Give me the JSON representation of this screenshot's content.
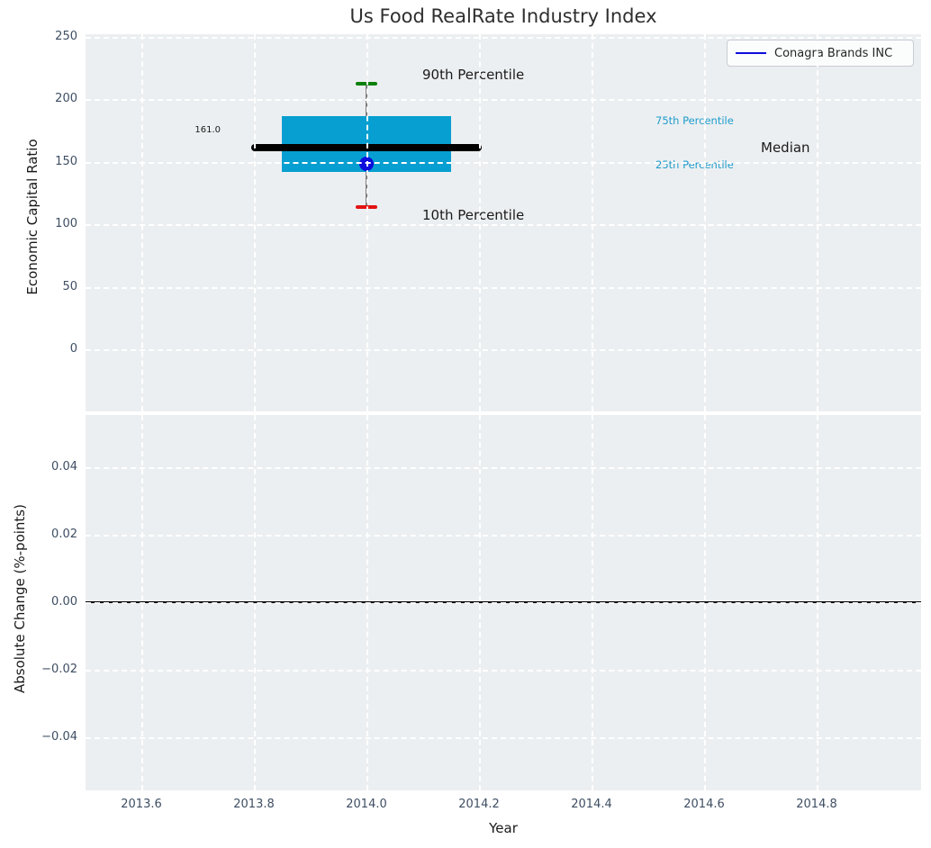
{
  "figure": {
    "title": "Us Food RealRate Industry Index",
    "xlabel": "Year",
    "background": "#ffffff",
    "axes_background": "#eceff1",
    "grid_color": "#ffffff",
    "tick_color": "#3e4e63"
  },
  "legend": {
    "label": "Conagra Brands INC",
    "line_color": "#0d0ddd",
    "location": "upper right"
  },
  "chart_data": [
    {
      "type": "boxplot",
      "title": "Us Food RealRate Industry Index",
      "xlabel": "Year",
      "ylabel": "Economic Capital Ratio",
      "x_center": 2014.0,
      "box_half_width": 0.15,
      "median_line_half_width": 0.205,
      "xlim": [
        2013.5,
        2014.99
      ],
      "ylim": [
        -50,
        252
      ],
      "x_ticks": [
        2013.6,
        2013.8,
        2014.0,
        2014.2,
        2014.4,
        2014.6,
        2014.8
      ],
      "x_tick_labels": [
        "2013.6",
        "2013.8",
        "2014.0",
        "2014.2",
        "2014.4",
        "2014.6",
        "2014.8"
      ],
      "y_ticks": [
        0,
        50,
        100,
        150,
        200,
        250
      ],
      "y_tick_labels": [
        "0",
        "50",
        "100",
        "150",
        "200",
        "250"
      ],
      "grid": true,
      "percentiles": {
        "p10": 114,
        "p25": 142,
        "median": 161,
        "p75": 186,
        "p90": 212
      },
      "median_value_label": "161.0",
      "company_point": {
        "name": "Conagra Brands INC",
        "year": 2014.0,
        "value": 148
      },
      "annotations": {
        "p90": "90th Percentile",
        "p75": "75th Percentile",
        "median": "Median",
        "p25": "25th Percentile",
        "p10": "10th Percentile"
      },
      "colors": {
        "box": "#079fd1",
        "median_line": "#000000",
        "whisker": "#7d7d7d",
        "cap_p90": "#0a800a",
        "cap_p10": "#e31212",
        "company_dot": "#0d0ddd",
        "percentile_label_text": "#1f9ccd",
        "annotation_text": "#1a1a1a"
      }
    },
    {
      "type": "line",
      "ylabel": "Absolute Change (%-points)",
      "xlabel": "Year",
      "x_ticks": [
        2013.6,
        2013.8,
        2014.0,
        2014.2,
        2014.4,
        2014.6,
        2014.8
      ],
      "x_tick_labels": [
        "2013.6",
        "2013.8",
        "2014.0",
        "2014.2",
        "2014.4",
        "2014.6",
        "2014.8"
      ],
      "y_ticks": [
        0.04,
        0.02,
        0.0,
        -0.02,
        -0.04
      ],
      "y_tick_labels": [
        "0.04",
        "0.02",
        "0.00",
        "−0.02",
        "−0.04"
      ],
      "ylim": [
        -0.0557,
        0.0555
      ],
      "grid": true,
      "zero_line": {
        "y": 0.0,
        "color": "#000000"
      },
      "series": []
    }
  ]
}
